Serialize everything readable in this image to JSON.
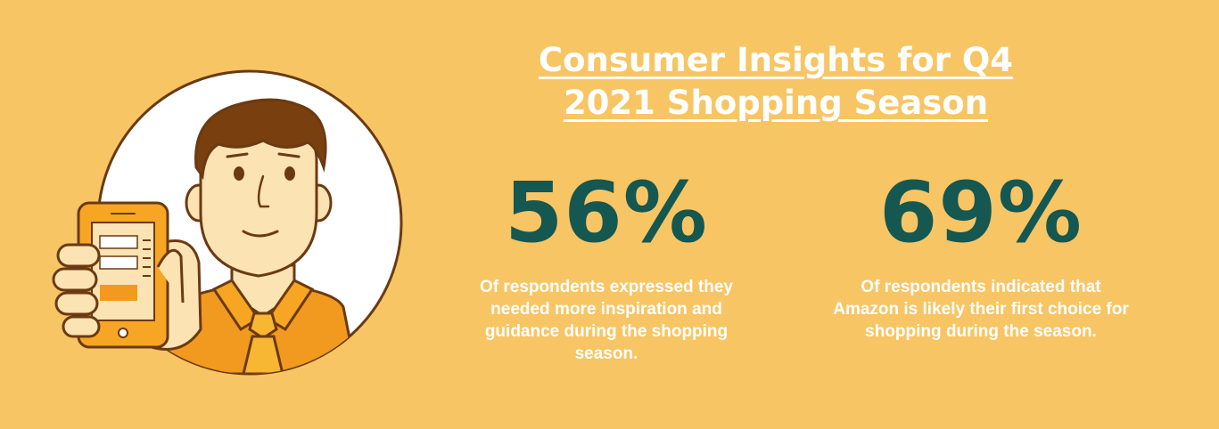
{
  "title": {
    "line1": "Consumer Insights for Q4",
    "line2": "2021 Shopping Season"
  },
  "stats": [
    {
      "value": "56%",
      "text": "Of respondents expressed they needed more inspiration and guidance during the shopping season."
    },
    {
      "value": "69%",
      "text": "Of respondents indicated that Amazon is likely their first choice for shopping during the season."
    }
  ],
  "colors": {
    "background": "#f8c565",
    "stat_value": "#155751",
    "text": "#ffffff",
    "accent_orange": "#f29a1f",
    "outline": "#6b3a12"
  },
  "illustration": {
    "icon": "man-holding-phone-icon"
  }
}
